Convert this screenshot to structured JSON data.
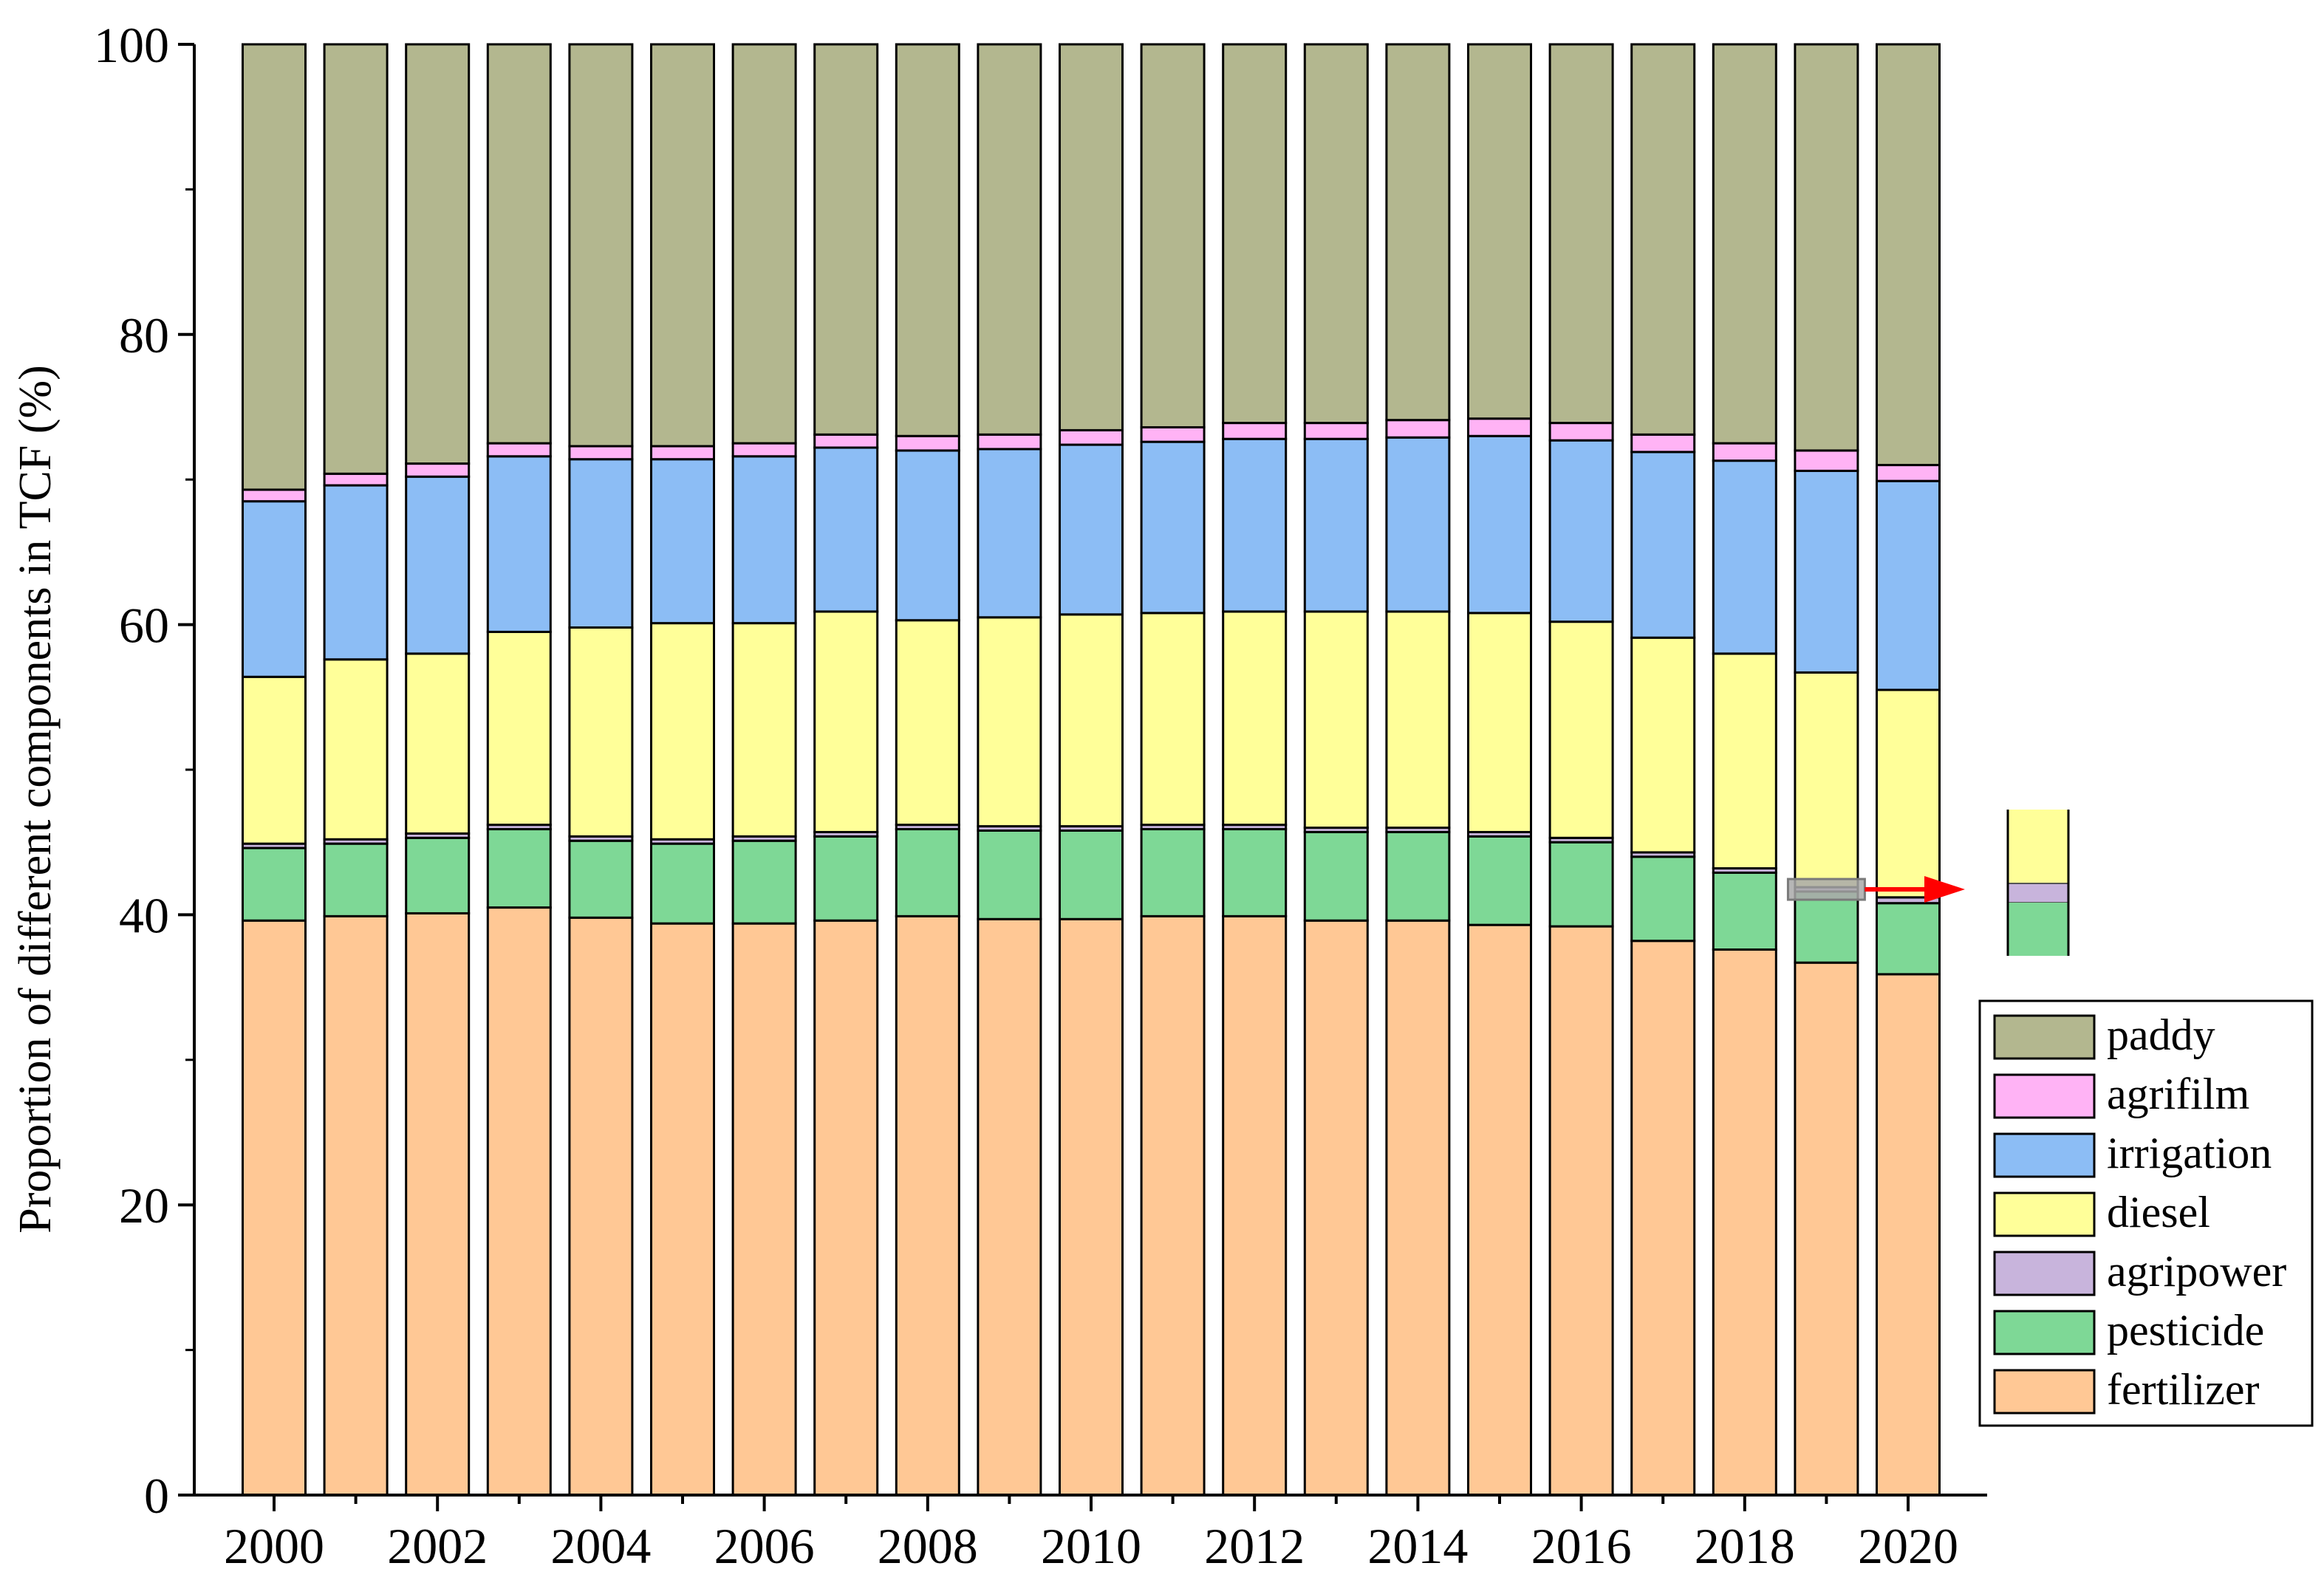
{
  "chart_data": {
    "type": "bar",
    "stacked": true,
    "title": "",
    "xlabel": "",
    "ylabel": "Proportion of different components in TCF (%)",
    "ylim": [
      0,
      100
    ],
    "yticks": [
      0,
      20,
      40,
      60,
      80,
      100
    ],
    "categories": [
      "2000",
      "2001",
      "2002",
      "2003",
      "2004",
      "2005",
      "2006",
      "2007",
      "2008",
      "2009",
      "2010",
      "2011",
      "2012",
      "2013",
      "2014",
      "2015",
      "2016",
      "2017",
      "2018",
      "2019",
      "2020"
    ],
    "xtick_labels": [
      "2000",
      "2002",
      "2004",
      "2006",
      "2008",
      "2010",
      "2012",
      "2014",
      "2016",
      "2018",
      "2020"
    ],
    "series": [
      {
        "name": "fertilizer",
        "color": "#FFC895",
        "values": [
          39.6,
          39.9,
          40.1,
          40.5,
          39.8,
          39.4,
          39.4,
          39.6,
          39.9,
          39.7,
          39.7,
          39.9,
          39.9,
          39.6,
          39.6,
          39.3,
          39.2,
          38.2,
          37.6,
          36.7,
          35.9
        ]
      },
      {
        "name": "pesticide",
        "color": "#7ED896",
        "values": [
          5.0,
          5.0,
          5.2,
          5.4,
          5.3,
          5.5,
          5.7,
          5.8,
          6.0,
          6.1,
          6.1,
          6.0,
          6.0,
          6.1,
          6.1,
          6.1,
          5.8,
          5.8,
          5.3,
          4.9,
          4.9
        ]
      },
      {
        "name": "agripower",
        "color": "#C8B4DC",
        "values": [
          0.3,
          0.3,
          0.3,
          0.3,
          0.3,
          0.3,
          0.3,
          0.3,
          0.3,
          0.3,
          0.3,
          0.3,
          0.3,
          0.3,
          0.3,
          0.3,
          0.3,
          0.3,
          0.3,
          0.3,
          0.4
        ]
      },
      {
        "name": "diesel",
        "color": "#FFFF99",
        "values": [
          11.5,
          12.4,
          12.4,
          13.3,
          14.4,
          14.9,
          14.7,
          15.2,
          14.1,
          14.4,
          14.6,
          14.6,
          14.7,
          14.9,
          14.9,
          15.1,
          14.9,
          14.8,
          14.8,
          14.8,
          14.3
        ]
      },
      {
        "name": "irrigation",
        "color": "#8CBDF5",
        "values": [
          12.1,
          12.0,
          12.2,
          12.1,
          11.6,
          11.3,
          11.5,
          11.3,
          11.7,
          11.6,
          11.7,
          11.8,
          11.9,
          11.9,
          12.0,
          12.2,
          12.5,
          12.8,
          13.3,
          13.9,
          14.4
        ]
      },
      {
        "name": "agrifilm",
        "color": "#FFB3F5",
        "values": [
          0.8,
          0.8,
          0.9,
          0.9,
          0.9,
          0.9,
          0.9,
          0.9,
          1.0,
          1.0,
          1.0,
          1.0,
          1.1,
          1.1,
          1.2,
          1.2,
          1.2,
          1.2,
          1.2,
          1.4,
          1.1
        ]
      },
      {
        "name": "paddy",
        "color": "#B3B78F",
        "values": [
          30.7,
          29.6,
          28.9,
          27.5,
          27.7,
          27.7,
          27.5,
          26.9,
          27.0,
          26.9,
          26.6,
          26.4,
          26.1,
          26.1,
          25.9,
          25.8,
          26.1,
          26.9,
          27.5,
          28.0,
          29.0
        ]
      }
    ],
    "legend": {
      "position": "right",
      "order": [
        "paddy",
        "agrifilm",
        "irrigation",
        "diesel",
        "agripower",
        "pesticide",
        "fertilizer"
      ]
    },
    "annotation": {
      "target_category": "2019",
      "target_series": "agripower",
      "arrow_color": "#FF0000",
      "description_series": [
        "diesel",
        "agripower",
        "pesticide"
      ]
    }
  }
}
